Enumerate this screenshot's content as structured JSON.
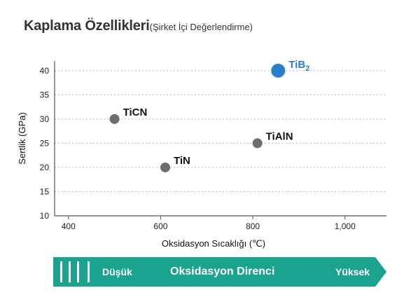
{
  "header": {
    "title": "Kaplama Özellikleri",
    "subtitle": "(Şirket  İçi Değerlendirme)"
  },
  "chart_data": {
    "type": "scatter",
    "xlabel": "Oksidasyon Sıcaklığı (℃)",
    "ylabel": "Sertlik  (GPa)",
    "xlim": [
      370,
      1090
    ],
    "ylim": [
      10,
      42
    ],
    "xticks": [
      400,
      600,
      800,
      1000
    ],
    "xtick_labels": [
      "400",
      "600",
      "800",
      "1,000"
    ],
    "yticks": [
      10,
      15,
      20,
      25,
      30,
      35,
      40
    ],
    "grid": "horizontal dotted",
    "points": [
      {
        "label": "TiCN",
        "x": 500,
        "y": 30,
        "color": "#6d6e70",
        "size": "small"
      },
      {
        "label": "TiN",
        "x": 610,
        "y": 20,
        "color": "#6d6e70",
        "size": "small"
      },
      {
        "label": "TiAlN",
        "x": 810,
        "y": 25,
        "color": "#6d6e70",
        "size": "small"
      },
      {
        "label": "TiB",
        "label_sub": "2",
        "x": 855,
        "y": 40,
        "color": "#2a7fcb",
        "size": "large"
      }
    ]
  },
  "band": {
    "low_label": "Düşük",
    "title": "Oksidasyon Direnci",
    "high_label": "Yüksek",
    "color": "#1aa38f"
  }
}
